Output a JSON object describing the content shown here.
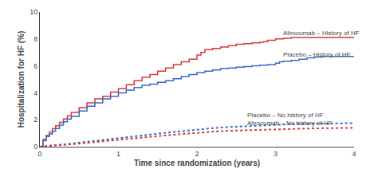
{
  "chart_data": {
    "type": "line",
    "xlabel": "Time since randomization (years)",
    "ylabel": "Hospitalization for HF (%)",
    "xlim": [
      0,
      4
    ],
    "ylim": [
      0,
      10
    ],
    "xticks": [
      0,
      1,
      2,
      3,
      4
    ],
    "yticks": [
      0,
      2,
      4,
      6,
      8,
      10
    ],
    "grid": false,
    "series": [
      {
        "name": "Alirocumab – History of HF",
        "type": "step",
        "line_style": "solid",
        "color": "#d63a3a",
        "x": [
          0,
          0.04,
          0.08,
          0.12,
          0.16,
          0.2,
          0.25,
          0.3,
          0.35,
          0.4,
          0.5,
          0.6,
          0.7,
          0.8,
          0.9,
          1.0,
          1.1,
          1.2,
          1.3,
          1.4,
          1.5,
          1.6,
          1.7,
          1.8,
          1.9,
          2.0,
          2.05,
          2.1,
          2.2,
          2.3,
          2.4,
          2.5,
          2.6,
          2.7,
          2.8,
          2.85,
          2.9,
          3.0,
          3.1,
          3.2,
          3.3,
          3.4,
          3.5,
          3.6,
          3.7,
          3.8,
          4.0
        ],
        "values": [
          0,
          0.55,
          0.85,
          1.1,
          1.35,
          1.55,
          1.8,
          2.05,
          2.3,
          2.55,
          2.9,
          3.25,
          3.55,
          3.75,
          4.05,
          4.3,
          4.6,
          4.9,
          5.15,
          5.35,
          5.6,
          5.85,
          6.1,
          6.3,
          6.5,
          6.8,
          7.0,
          7.2,
          7.3,
          7.4,
          7.5,
          7.6,
          7.65,
          7.7,
          7.75,
          7.8,
          7.9,
          8.0,
          8.05,
          8.1,
          8.1,
          8.1,
          8.1,
          8.1,
          8.1,
          8.1,
          8.1
        ]
      },
      {
        "name": "Placebo – History of HF",
        "type": "step",
        "line_style": "solid",
        "color": "#3a68c8",
        "x": [
          0,
          0.04,
          0.08,
          0.12,
          0.16,
          0.2,
          0.25,
          0.3,
          0.35,
          0.4,
          0.5,
          0.6,
          0.7,
          0.8,
          0.9,
          1.0,
          1.1,
          1.2,
          1.3,
          1.4,
          1.5,
          1.6,
          1.7,
          1.8,
          1.9,
          2.0,
          2.1,
          2.2,
          2.3,
          2.4,
          2.5,
          2.6,
          2.7,
          2.8,
          2.9,
          3.0,
          3.05,
          3.1,
          3.2,
          3.3,
          3.4,
          3.5,
          3.6,
          3.7,
          3.8,
          4.0
        ],
        "values": [
          0,
          0.45,
          0.75,
          0.95,
          1.15,
          1.35,
          1.6,
          1.85,
          2.05,
          2.25,
          2.65,
          3.0,
          3.25,
          3.55,
          3.75,
          4.0,
          4.2,
          4.4,
          4.55,
          4.65,
          4.78,
          4.9,
          5.05,
          5.2,
          5.35,
          5.5,
          5.6,
          5.7,
          5.8,
          5.85,
          5.9,
          5.95,
          6.0,
          6.05,
          6.1,
          6.2,
          6.3,
          6.35,
          6.4,
          6.5,
          6.6,
          6.65,
          6.7,
          6.7,
          6.7,
          6.7
        ]
      },
      {
        "name": "Placebo – No history of HF",
        "type": "line",
        "line_style": "dotted",
        "color": "#3a68c8",
        "x": [
          0,
          0.1,
          0.2,
          0.3,
          0.4,
          0.5,
          0.6,
          0.7,
          0.8,
          0.9,
          1.0,
          1.1,
          1.2,
          1.3,
          1.4,
          1.5,
          1.6,
          1.7,
          1.8,
          1.9,
          2.0,
          2.2,
          2.4,
          2.6,
          2.8,
          3.0,
          3.2,
          3.4,
          3.6,
          3.8,
          4.0
        ],
        "values": [
          0,
          0.05,
          0.1,
          0.17,
          0.23,
          0.3,
          0.37,
          0.43,
          0.5,
          0.57,
          0.63,
          0.7,
          0.77,
          0.83,
          0.9,
          0.97,
          1.03,
          1.09,
          1.15,
          1.21,
          1.27,
          1.37,
          1.46,
          1.52,
          1.57,
          1.62,
          1.67,
          1.7,
          1.72,
          1.74,
          1.75
        ]
      },
      {
        "name": "Alirocumab – No history of HF",
        "type": "line",
        "line_style": "dotted",
        "color": "#d63a3a",
        "x": [
          0,
          0.1,
          0.2,
          0.3,
          0.4,
          0.5,
          0.6,
          0.7,
          0.8,
          0.9,
          1.0,
          1.1,
          1.2,
          1.3,
          1.4,
          1.5,
          1.6,
          1.7,
          1.8,
          1.9,
          2.0,
          2.2,
          2.4,
          2.6,
          2.8,
          3.0,
          3.2,
          3.4,
          3.6,
          3.8,
          4.0
        ],
        "values": [
          0,
          0.04,
          0.08,
          0.13,
          0.18,
          0.23,
          0.29,
          0.34,
          0.4,
          0.45,
          0.51,
          0.56,
          0.62,
          0.67,
          0.73,
          0.78,
          0.84,
          0.89,
          0.94,
          0.99,
          1.04,
          1.12,
          1.18,
          1.22,
          1.26,
          1.3,
          1.33,
          1.35,
          1.37,
          1.39,
          1.4
        ]
      }
    ],
    "annotations": [
      {
        "text": "Alirocumab – History of HF",
        "x": 3.08,
        "y": 8.45
      },
      {
        "text": "Placebo – History of HF",
        "x": 3.08,
        "y": 6.85
      },
      {
        "text": "Placebo – No history of HF",
        "x": 2.62,
        "y": 2.35
      },
      {
        "text": "Alirocumab – No history of HF",
        "x": 2.62,
        "y": 1.72
      }
    ]
  }
}
